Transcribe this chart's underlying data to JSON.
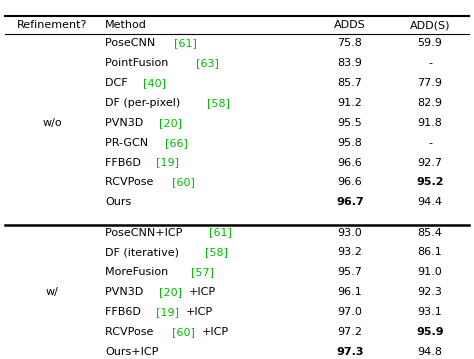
{
  "header": [
    "Refinement?",
    "Method",
    "ADDS",
    "ADD(S)"
  ],
  "wo_label": "w/o",
  "w_label": "w/",
  "wo_rows": [
    {
      "parts": [
        {
          "t": "PoseCNN ",
          "c": "black"
        },
        {
          "t": "[61]",
          "c": "green"
        }
      ],
      "adds": "75.8",
      "ab": false,
      "addscore": "59.9",
      "sb": false
    },
    {
      "parts": [
        {
          "t": "PointFusion  ",
          "c": "black"
        },
        {
          "t": "[63]",
          "c": "green"
        }
      ],
      "adds": "83.9",
      "ab": false,
      "addscore": "-",
      "sb": false
    },
    {
      "parts": [
        {
          "t": "DCF  ",
          "c": "black"
        },
        {
          "t": "[40]",
          "c": "green"
        }
      ],
      "adds": "85.7",
      "ab": false,
      "addscore": "77.9",
      "sb": false
    },
    {
      "parts": [
        {
          "t": "DF (per-pixel) ",
          "c": "black"
        },
        {
          "t": "[58]",
          "c": "green"
        }
      ],
      "adds": "91.2",
      "ab": false,
      "addscore": "82.9",
      "sb": false
    },
    {
      "parts": [
        {
          "t": "PVN3D ",
          "c": "black"
        },
        {
          "t": "[20]",
          "c": "green"
        }
      ],
      "adds": "95.5",
      "ab": false,
      "addscore": "91.8",
      "sb": false
    },
    {
      "parts": [
        {
          "t": "PR-GCN ",
          "c": "black"
        },
        {
          "t": "[66]",
          "c": "green"
        }
      ],
      "adds": "95.8",
      "ab": false,
      "addscore": "-",
      "sb": false
    },
    {
      "parts": [
        {
          "t": "FFB6D ",
          "c": "black"
        },
        {
          "t": "[19]",
          "c": "green"
        }
      ],
      "adds": "96.6",
      "ab": false,
      "addscore": "92.7",
      "sb": false
    },
    {
      "parts": [
        {
          "t": "RCVPose ",
          "c": "black"
        },
        {
          "t": "[60]",
          "c": "green"
        }
      ],
      "adds": "96.6",
      "ab": false,
      "addscore": "95.2",
      "sb": true
    },
    {
      "parts": [
        {
          "t": "Ours",
          "c": "black"
        }
      ],
      "adds": "96.7",
      "ab": true,
      "addscore": "94.4",
      "sb": false
    }
  ],
  "w_rows": [
    {
      "parts": [
        {
          "t": "PoseCNN+ICP ",
          "c": "black"
        },
        {
          "t": "[61]",
          "c": "green"
        }
      ],
      "adds": "93.0",
      "ab": false,
      "addscore": "85.4",
      "sb": false
    },
    {
      "parts": [
        {
          "t": "DF (iterative) ",
          "c": "black"
        },
        {
          "t": "[58]",
          "c": "green"
        }
      ],
      "adds": "93.2",
      "ab": false,
      "addscore": "86.1",
      "sb": false
    },
    {
      "parts": [
        {
          "t": "MoreFusion ",
          "c": "black"
        },
        {
          "t": "[57]",
          "c": "green"
        }
      ],
      "adds": "95.7",
      "ab": false,
      "addscore": "91.0",
      "sb": false
    },
    {
      "parts": [
        {
          "t": "PVN3D ",
          "c": "black"
        },
        {
          "t": "[20]",
          "c": "green"
        },
        {
          "t": "+ICP",
          "c": "black"
        }
      ],
      "adds": "96.1",
      "ab": false,
      "addscore": "92.3",
      "sb": false
    },
    {
      "parts": [
        {
          "t": "FFB6D ",
          "c": "black"
        },
        {
          "t": "[19]",
          "c": "green"
        },
        {
          "t": "+ICP",
          "c": "black"
        }
      ],
      "adds": "97.0",
      "ab": false,
      "addscore": "93.1",
      "sb": false
    },
    {
      "parts": [
        {
          "t": "RCVPose ",
          "c": "black"
        },
        {
          "t": "[60]",
          "c": "green"
        },
        {
          "t": "+ICP",
          "c": "black"
        }
      ],
      "adds": "97.2",
      "ab": false,
      "addscore": "95.9",
      "sb": true
    },
    {
      "parts": [
        {
          "t": "Ours+ICP",
          "c": "black"
        }
      ],
      "adds": "97.3",
      "ab": true,
      "addscore": "94.8",
      "sb": false
    }
  ],
  "bg_color": "#ffffff",
  "text_color": "#000000",
  "green_color": "#00bb00",
  "font_size": 8.0
}
